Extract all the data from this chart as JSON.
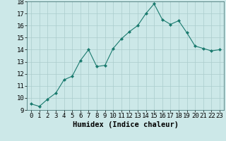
{
  "x": [
    0,
    1,
    2,
    3,
    4,
    5,
    6,
    7,
    8,
    9,
    10,
    11,
    12,
    13,
    14,
    15,
    16,
    17,
    18,
    19,
    20,
    21,
    22,
    23
  ],
  "y": [
    9.5,
    9.3,
    9.9,
    10.4,
    11.5,
    11.8,
    13.1,
    14.0,
    12.6,
    12.7,
    14.1,
    14.9,
    15.5,
    16.0,
    17.0,
    17.8,
    16.5,
    16.1,
    16.4,
    15.4,
    14.3,
    14.1,
    13.9,
    14.0
  ],
  "xlabel": "Humidex (Indice chaleur)",
  "xlim": [
    -0.5,
    23.5
  ],
  "ylim": [
    9,
    18
  ],
  "yticks": [
    9,
    10,
    11,
    12,
    13,
    14,
    15,
    16,
    17,
    18
  ],
  "xticks": [
    0,
    1,
    2,
    3,
    4,
    5,
    6,
    7,
    8,
    9,
    10,
    11,
    12,
    13,
    14,
    15,
    16,
    17,
    18,
    19,
    20,
    21,
    22,
    23
  ],
  "line_color": "#1a7a6e",
  "marker": "D",
  "marker_size": 2.0,
  "bg_color": "#cce8e8",
  "grid_color": "#aacccc",
  "xlabel_fontsize": 7.5,
  "tick_fontsize": 6.5,
  "spine_color": "#336666"
}
